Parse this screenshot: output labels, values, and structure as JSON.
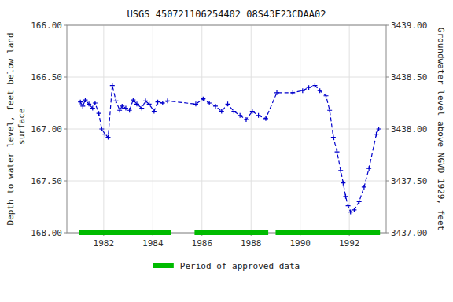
{
  "chart_data": {
    "type": "line",
    "title": "USGS 450721106254402 08S43E23CDAA02",
    "ylabel": "Depth to water level, feet below land\n surface",
    "y2label": "Groundwater level above NGVD 1929, feet",
    "x": [
      1981.05,
      1981.15,
      1981.25,
      1981.4,
      1981.55,
      1981.65,
      1981.8,
      1981.92,
      1982.05,
      1982.18,
      1982.35,
      1982.5,
      1982.65,
      1982.75,
      1982.9,
      1983.05,
      1983.2,
      1983.35,
      1983.55,
      1983.7,
      1983.85,
      1984.05,
      1984.2,
      1984.4,
      1984.6,
      1985.75,
      1986.05,
      1986.3,
      1986.55,
      1986.8,
      1987.05,
      1987.3,
      1987.55,
      1987.8,
      1988.05,
      1988.3,
      1988.6,
      1989.05,
      1989.7,
      1990.1,
      1990.35,
      1990.6,
      1990.8,
      1991.05,
      1991.2,
      1991.35,
      1991.5,
      1991.65,
      1991.75,
      1991.85,
      1991.95,
      1992.05,
      1992.2,
      1992.4,
      1992.6,
      1992.8,
      1993.1,
      1993.2
    ],
    "series": [
      {
        "color": "#0000CC",
        "line_style": "dashed",
        "marker": "plus",
        "values": [
          166.74,
          166.78,
          166.72,
          166.76,
          166.8,
          166.75,
          166.85,
          167.0,
          167.05,
          167.08,
          166.58,
          166.73,
          166.82,
          166.78,
          166.8,
          166.82,
          166.72,
          166.76,
          166.8,
          166.73,
          166.76,
          166.83,
          166.74,
          166.75,
          166.73,
          166.76,
          166.71,
          166.75,
          166.78,
          166.83,
          166.76,
          166.83,
          166.87,
          166.91,
          166.83,
          166.87,
          166.9,
          166.65,
          166.65,
          166.63,
          166.6,
          166.58,
          166.63,
          166.68,
          166.82,
          167.08,
          167.22,
          167.4,
          167.52,
          167.65,
          167.74,
          167.8,
          167.78,
          167.7,
          167.56,
          167.38,
          167.05,
          167.0
        ]
      }
    ],
    "xlim": [
      1980.5,
      1993.5
    ],
    "xticks": [
      1982,
      1984,
      1986,
      1988,
      1990,
      1992
    ],
    "ylim": [
      168.0,
      166.0
    ],
    "yticks": [
      {
        "value": 168.0,
        "label": "168.00"
      },
      {
        "value": 167.5,
        "label": "167.50"
      },
      {
        "value": 167.0,
        "label": "167.00"
      },
      {
        "value": 166.5,
        "label": "166.50"
      },
      {
        "value": 166.0,
        "label": "166.00"
      }
    ],
    "y2lim": [
      3437.0,
      3439.0
    ],
    "y2ticks": [
      {
        "value": 3437.0,
        "label": "3437.00"
      },
      {
        "value": 3437.5,
        "label": "3437.50"
      },
      {
        "value": 3438.0,
        "label": "3438.00"
      },
      {
        "value": 3438.5,
        "label": "3438.50"
      },
      {
        "value": 3439.0,
        "label": "3439.00"
      }
    ],
    "grid": true,
    "legend": "bottom",
    "approved_periods": {
      "name": "Period of approved data",
      "color": "#00BB00",
      "start": [
        1981.0,
        1985.7,
        1989.0
      ],
      "end": [
        1984.75,
        1988.7,
        1993.25
      ]
    }
  }
}
